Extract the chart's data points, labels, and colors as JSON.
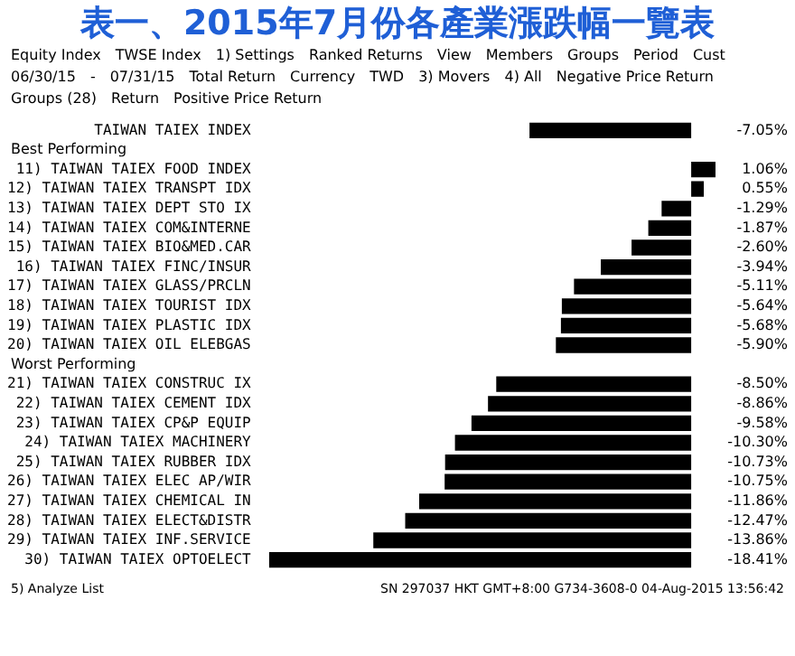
{
  "chart_data": {
    "type": "bar",
    "orientation": "horizontal",
    "title": "表一、2015年7月份各產業漲跌幅一覽表",
    "categories": [
      "TAIWAN TAIEX INDEX",
      "11) TAIWAN TAIEX FOOD INDEX",
      "12) TAIWAN TAIEX TRANSPT IDX",
      "13) TAIWAN TAIEX DEPT STO IX",
      "14) TAIWAN TAIEX COM&INTERNE",
      "15) TAIWAN TAIEX BIO&MED.CAR",
      "16) TAIWAN TAIEX FINC/INSUR",
      "17) TAIWAN TAIEX GLASS/PRCLN",
      "18) TAIWAN TAIEX TOURIST IDX",
      "19) TAIWAN TAIEX PLASTIC IDX",
      "20) TAIWAN TAIEX OIL ELEBGAS",
      "21) TAIWAN TAIEX CONSTRUC IX",
      "22) TAIWAN TAIEX CEMENT IDX",
      "23) TAIWAN TAIEX CP&P EQUIP",
      "24) TAIWAN TAIEX MACHINERY",
      "25) TAIWAN TAIEX RUBBER IDX",
      "26) TAIWAN TAIEX ELEC AP/WIR",
      "27) TAIWAN TAIEX CHEMICAL IN",
      "28) TAIWAN TAIEX ELECT&DISTR",
      "29) TAIWAN TAIEX INF.SERVICE",
      "30) TAIWAN TAIEX OPTOELECT"
    ],
    "values": [
      -7.05,
      1.06,
      0.55,
      -1.29,
      -1.87,
      -2.6,
      -3.94,
      -5.11,
      -5.64,
      -5.68,
      -5.9,
      -8.5,
      -8.86,
      -9.58,
      -10.3,
      -10.73,
      -10.75,
      -11.86,
      -12.47,
      -13.86,
      -18.41
    ],
    "value_labels": [
      "-7.05%",
      "1.06%",
      "0.55%",
      "-1.29%",
      "-1.87%",
      "-2.60%",
      "-3.94%",
      "-5.11%",
      "-5.64%",
      "-5.68%",
      "-5.90%",
      "-8.50%",
      "-8.86%",
      "-9.58%",
      "-10.30%",
      "-10.73%",
      "-10.75%",
      "-11.86%",
      "-12.47%",
      "-13.86%",
      "-18.41%"
    ],
    "color": "#000000",
    "annotations": [
      "Equity Index",
      "TWSE Index",
      "1) Settings",
      "Ranked Returns",
      "View",
      "Members",
      "Groups",
      "Period",
      "Cust",
      "06/30/15",
      "-",
      "07/31/15",
      "Total Return",
      "Currency",
      "TWD",
      "3) Movers",
      "4) All",
      "Negative Price Return",
      "Groups (28)",
      "Return",
      "Positive Price Return",
      "Best Performing",
      "Worst Performing",
      "5) Analyze List",
      "SN 297037 HKT GMT+8:00 G734-3608-0 04-Aug-2015 13:56:42"
    ]
  }
}
